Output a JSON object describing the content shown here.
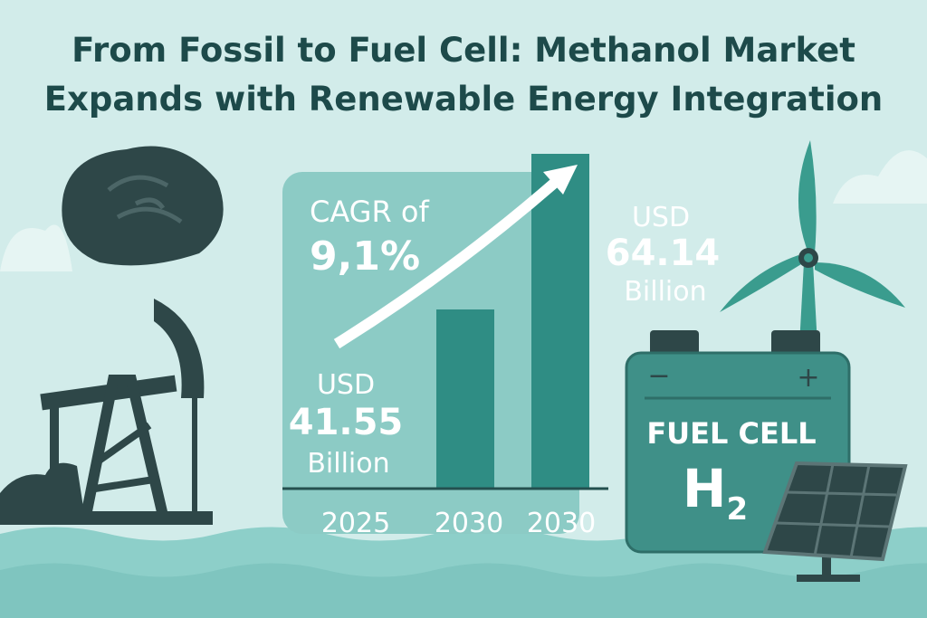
{
  "header": {
    "title_line1": "From Fossil to Fuel Cell: Methanol Market",
    "title_line2": "Expands with Renewable Energy Integration"
  },
  "cagr": {
    "label": "CAGR of",
    "value": "9,1%"
  },
  "start": {
    "currency": "USD",
    "amount": "41.55",
    "unit": "Billion"
  },
  "end": {
    "currency": "USD",
    "amount": "64.14",
    "unit": "Billion"
  },
  "years": [
    "2025",
    "2030",
    "2030"
  ],
  "battery": {
    "label": "FUEL CELL",
    "symbol": "H",
    "subscript": "2"
  }
}
